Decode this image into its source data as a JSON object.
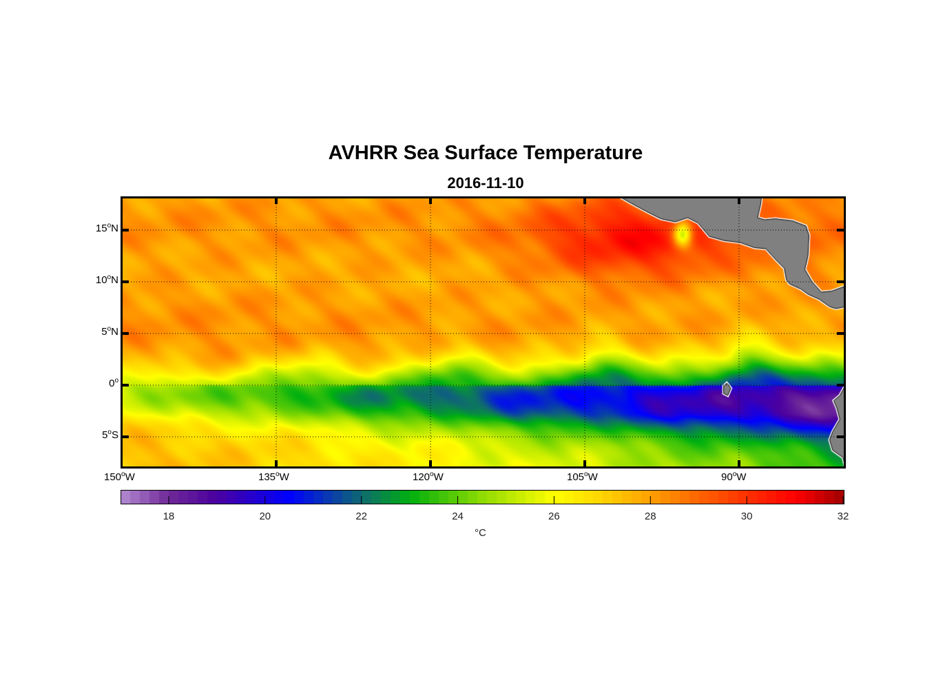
{
  "chart_data": {
    "type": "heatmap",
    "title": "AVHRR Sea Surface Temperature",
    "subtitle": "2016-11-10",
    "x_ticks": [
      {
        "value": -150,
        "label": "150",
        "suffix": "W"
      },
      {
        "value": -135,
        "label": "135",
        "suffix": "W"
      },
      {
        "value": -120,
        "label": "120",
        "suffix": "W"
      },
      {
        "value": -105,
        "label": "105",
        "suffix": "W"
      },
      {
        "value": -90,
        "label": "90",
        "suffix": "W"
      }
    ],
    "y_ticks": [
      {
        "value": 15,
        "label": "15",
        "suffix": "N"
      },
      {
        "value": 10,
        "label": "10",
        "suffix": "N"
      },
      {
        "value": 5,
        "label": "5",
        "suffix": "N"
      },
      {
        "value": 0,
        "label": "0",
        "suffix": ""
      },
      {
        "value": -5,
        "label": "5",
        "suffix": "S"
      }
    ],
    "lon_range": [
      -150,
      -80
    ],
    "lat_range": [
      -8,
      18.2
    ],
    "grid": true,
    "colorbar": {
      "range": [
        17,
        32
      ],
      "ticks": [
        "18",
        "20",
        "22",
        "24",
        "26",
        "28",
        "30",
        "32"
      ],
      "unit": "°C",
      "colors": [
        [
          17,
          "#b48cd2"
        ],
        [
          18,
          "#702a98"
        ],
        [
          19,
          "#4a00a0"
        ],
        [
          20.5,
          "#0000ff"
        ],
        [
          22,
          "#0f6a70"
        ],
        [
          23,
          "#00b010"
        ],
        [
          24.5,
          "#90dc00"
        ],
        [
          26,
          "#ffff00"
        ],
        [
          27,
          "#ffd400"
        ],
        [
          28,
          "#ffa000"
        ],
        [
          29,
          "#ff6400"
        ],
        [
          30,
          "#ff3000"
        ],
        [
          31,
          "#ff0000"
        ],
        [
          32,
          "#a00000"
        ]
      ]
    },
    "land_color": "#808080"
  }
}
